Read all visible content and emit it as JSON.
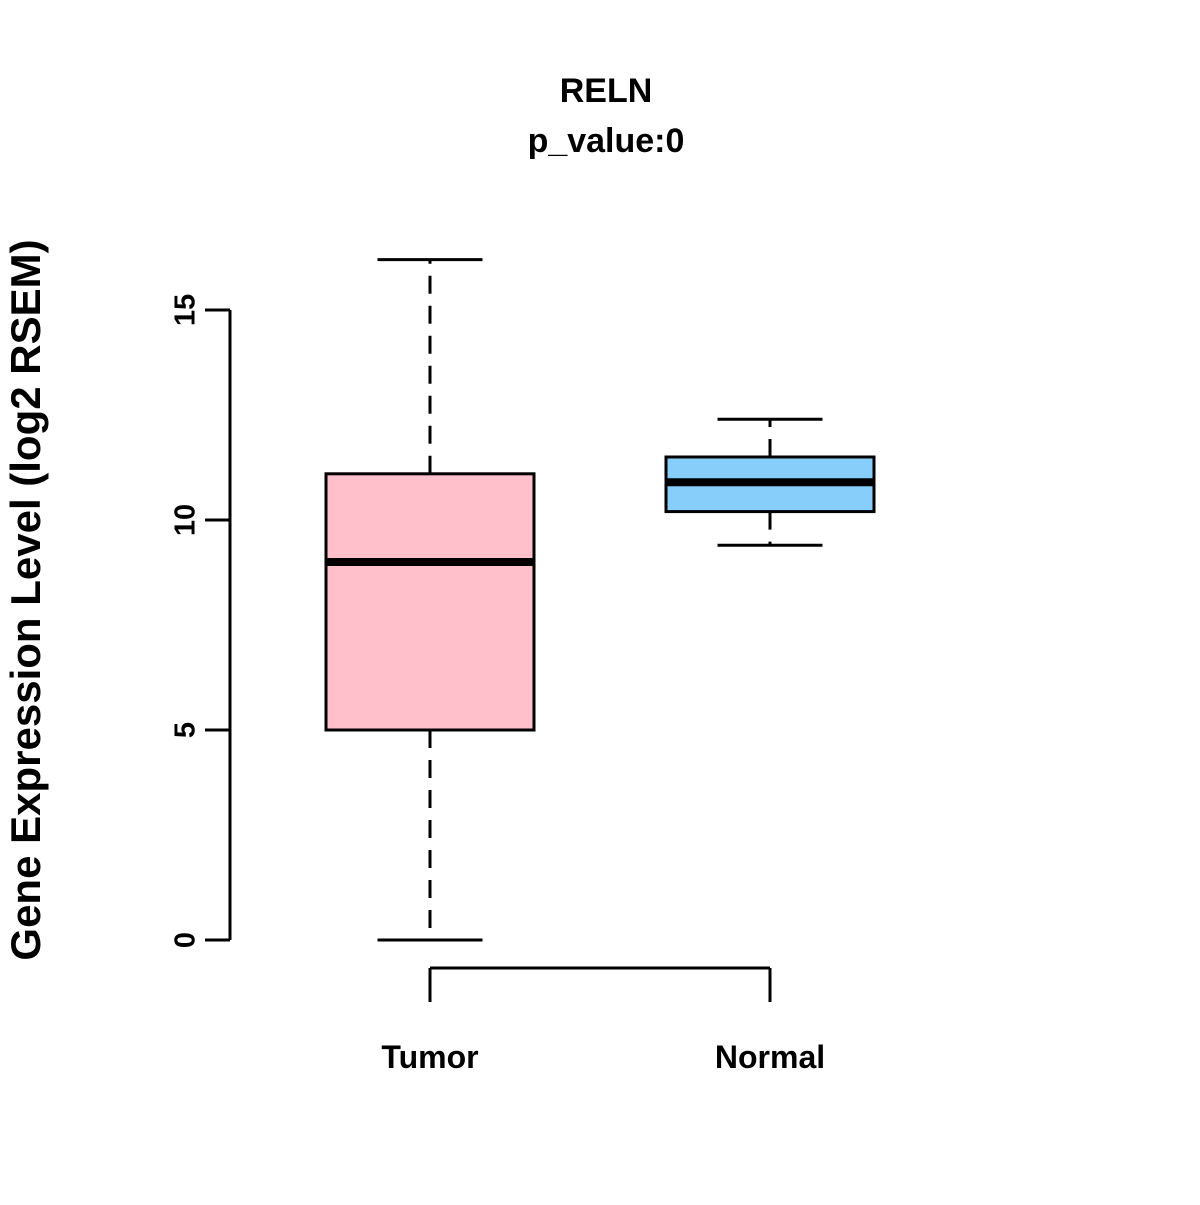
{
  "chart_data": {
    "type": "boxplot",
    "title": "RELN",
    "subtitle": "p_value:0",
    "ylabel": "Gene Expression Level (log2 RSEM)",
    "xlabel": "",
    "yticks": [
      0,
      5,
      10,
      15
    ],
    "ylim": [
      0,
      16.5
    ],
    "grid": false,
    "legend": "none",
    "groups": [
      {
        "label": "Tumor",
        "color": "#FFC0CB",
        "whisker_low": 0,
        "q1": 5.0,
        "median": 9.0,
        "q3": 11.1,
        "whisker_high": 16.2
      },
      {
        "label": "Normal",
        "color": "#87CEFA",
        "whisker_low": 9.4,
        "q1": 10.2,
        "median": 10.9,
        "q3": 11.5,
        "whisker_high": 12.4
      }
    ]
  }
}
